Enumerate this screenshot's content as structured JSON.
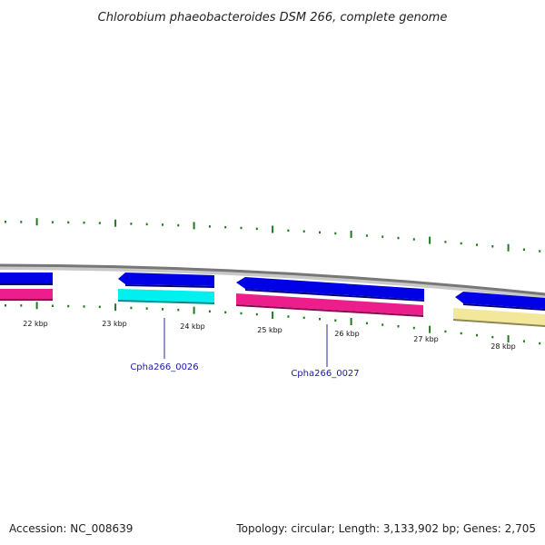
{
  "title": "Chlorobium phaeobacteroides DSM 266, complete genome",
  "footer": {
    "accession": "Accession: NC_008639",
    "summary": "Topology: circular; Length: 3,133,902 bp; Genes: 2,705"
  },
  "colors": {
    "backbone": "#8a8a8a",
    "tick": "#1f7a1f",
    "forward_cds": "#0000e6",
    "magenta_feature": "#ec1e8c",
    "cyan_feature": "#00f0f0",
    "khaki_feature": "#f2e79a",
    "gene_label": "#1a1aa6"
  },
  "ticks": {
    "labels": [
      "22 kbp",
      "23 kbp",
      "24 kbp",
      "25 kbp",
      "26 kbp",
      "27 kbp",
      "28 kbp"
    ]
  },
  "features": [
    {
      "name": "cds-blue-1",
      "color": "forward_cds",
      "strand": "outer",
      "arrow": "none"
    },
    {
      "name": "feature-magenta-1",
      "color": "magenta_feature",
      "strand": "inner",
      "arrow": "none"
    },
    {
      "name": "cds-blue-2",
      "color": "forward_cds",
      "strand": "outer",
      "arrow": "left"
    },
    {
      "name": "feature-cyan-1",
      "color": "cyan_feature",
      "strand": "inner",
      "arrow": "none"
    },
    {
      "name": "cds-blue-3",
      "color": "forward_cds",
      "strand": "outer",
      "arrow": "left"
    },
    {
      "name": "feature-magenta-2",
      "color": "magenta_feature",
      "strand": "inner",
      "arrow": "none"
    },
    {
      "name": "cds-blue-4",
      "color": "forward_cds",
      "strand": "outer",
      "arrow": "left"
    },
    {
      "name": "feature-khaki-1",
      "color": "khaki_feature",
      "strand": "inner",
      "arrow": "none"
    }
  ],
  "gene_labels": [
    "Cpha266_0026",
    "Cpha266_0027"
  ]
}
